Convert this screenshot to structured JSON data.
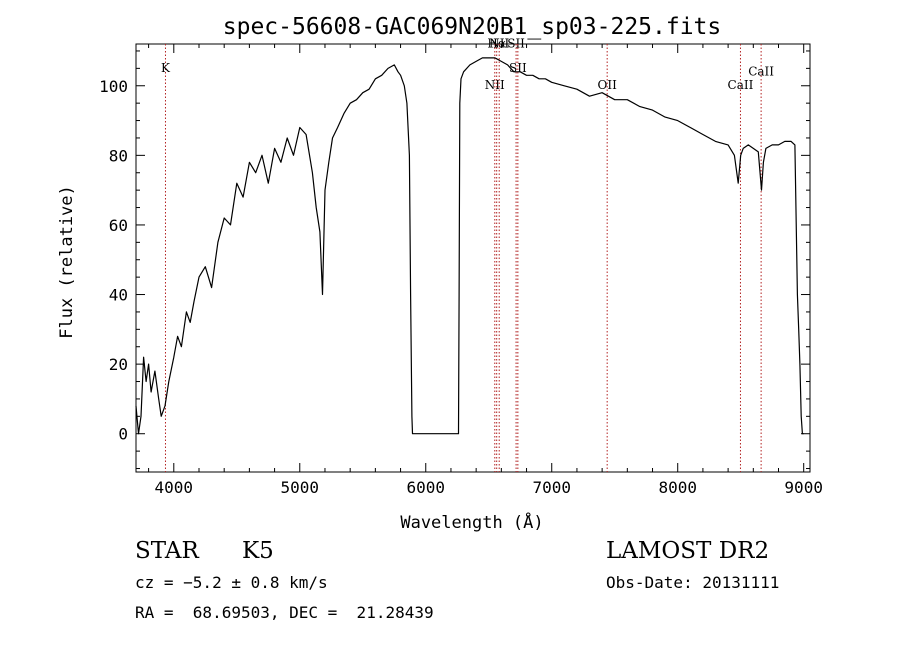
{
  "chart_data": {
    "type": "line",
    "title": "spec-56608-GAC069N20B1_sp03-225.fits",
    "xlabel": "Wavelength (Å)",
    "ylabel": "Flux (relative)",
    "xlim": [
      3700,
      9050
    ],
    "ylim": [
      -11,
      112
    ],
    "xticks": [
      4000,
      5000,
      6000,
      7000,
      8000,
      9000
    ],
    "yticks": [
      0,
      20,
      40,
      60,
      80,
      100
    ],
    "grid": false,
    "colors": {
      "spectrum": "#000000",
      "line_marker": "#b22222"
    },
    "series": [
      {
        "x": [
          3700,
          3720,
          3740,
          3760,
          3780,
          3800,
          3820,
          3850,
          3880,
          3900,
          3930,
          3960,
          4000,
          4030,
          4060,
          4100,
          4130,
          4160,
          4200,
          4250,
          4300,
          4350,
          4400,
          4450,
          4500,
          4550,
          4600,
          4650,
          4700,
          4750,
          4800,
          4850,
          4900,
          4950,
          5000,
          5050,
          5100,
          5130,
          5160,
          5180,
          5200,
          5230,
          5260,
          5300,
          5350,
          5400,
          5450,
          5500,
          5550,
          5600,
          5650,
          5700,
          5750,
          5780,
          5800,
          5830,
          5850,
          5870,
          5880,
          5890,
          5895,
          5900,
          5910,
          5950,
          6000,
          6100,
          6200,
          6260,
          6265,
          6270,
          6280,
          6300,
          6350,
          6400,
          6450,
          6500,
          6550,
          6600,
          6650,
          6700,
          6750,
          6800,
          6850,
          6900,
          6950,
          7000,
          7100,
          7200,
          7300,
          7400,
          7500,
          7600,
          7700,
          7800,
          7900,
          8000,
          8100,
          8200,
          8300,
          8400,
          8450,
          8480,
          8500,
          8520,
          8560,
          8600,
          8640,
          8665,
          8680,
          8700,
          8750,
          8800,
          8850,
          8900,
          8930,
          8950,
          8960,
          8970,
          8980,
          8990,
          9000
        ],
        "values": [
          8,
          0,
          5,
          22,
          15,
          20,
          12,
          18,
          10,
          5,
          8,
          15,
          22,
          28,
          25,
          35,
          32,
          38,
          45,
          48,
          42,
          55,
          62,
          60,
          72,
          68,
          78,
          75,
          80,
          72,
          82,
          78,
          85,
          80,
          88,
          86,
          75,
          65,
          58,
          40,
          70,
          78,
          85,
          88,
          92,
          95,
          96,
          98,
          99,
          102,
          103,
          105,
          106,
          104,
          103,
          100,
          95,
          80,
          40,
          5,
          0,
          0,
          0,
          0,
          0,
          0,
          0,
          0,
          40,
          95,
          102,
          104,
          106,
          107,
          108,
          108,
          108,
          107,
          106,
          104,
          104,
          103,
          103,
          102,
          102,
          101,
          100,
          99,
          97,
          98,
          96,
          96,
          94,
          93,
          91,
          90,
          88,
          86,
          84,
          83,
          80,
          72,
          80,
          82,
          83,
          82,
          81,
          70,
          78,
          82,
          83,
          83,
          84,
          84,
          83,
          40,
          30,
          20,
          5,
          0,
          0
        ]
      }
    ],
    "line_markers": [
      {
        "label": "K",
        "x": 3934,
        "label_y": 104
      },
      {
        "label": "NII",
        "x": 6548,
        "label_y": 99
      },
      {
        "label": "Hα",
        "x": 6563,
        "label_y": 111
      },
      {
        "label": "NII",
        "x": 6583,
        "label_y": 111
      },
      {
        "label": "SII",
        "x": 6717,
        "label_y": 111
      },
      {
        "label": "SII",
        "x": 6731,
        "label_y": 104
      },
      {
        "label": "OII",
        "x": 7440,
        "label_y": 99
      },
      {
        "label": "CaII",
        "x": 8498,
        "label_y": 99
      },
      {
        "label": "CaII",
        "x": 8662,
        "label_y": 103
      }
    ]
  },
  "info": {
    "object_class": "STAR",
    "subclass": "K5",
    "cz": "cz = −5.2 ± 0.8 km/s",
    "coords": "RA =  68.69503, DEC =  21.28439",
    "survey": "LAMOST DR2",
    "obs_date": "Obs-Date: 20131111"
  }
}
